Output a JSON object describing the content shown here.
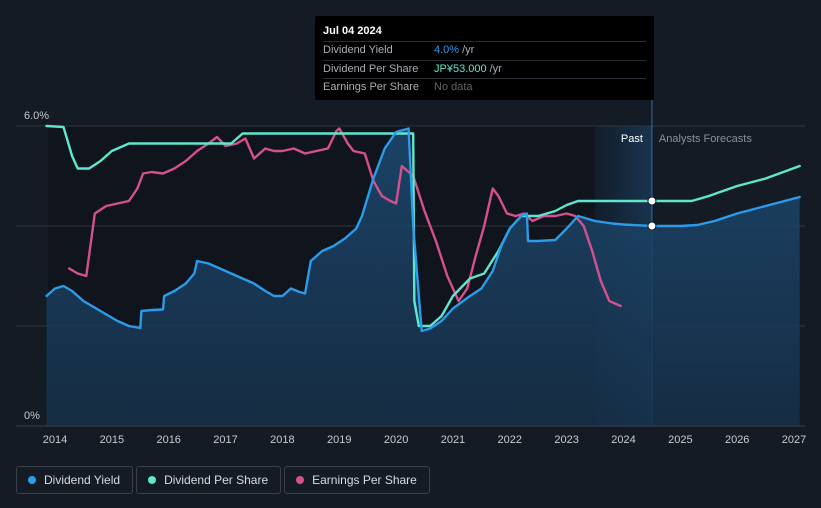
{
  "colors": {
    "background": "#151b24",
    "dividend_yield": "#2b9bea",
    "dividend_per_share": "#5fe7cd",
    "earnings_per_share": "#d4508f",
    "grid": "#2e3440",
    "axis_text": "#c7cbd1"
  },
  "tooltip": {
    "date": "Jul 04 2024",
    "rows": [
      {
        "label": "Dividend Yield",
        "value": "4.0%",
        "unit": "/yr"
      },
      {
        "label": "Dividend Per Share",
        "value": "JP¥53.000",
        "unit": "/yr"
      },
      {
        "label": "Earnings Per Share",
        "value": "No data",
        "unit": ""
      }
    ]
  },
  "legend": [
    {
      "label": "Dividend Yield",
      "color_key": "dividend_yield"
    },
    {
      "label": "Dividend Per Share",
      "color_key": "dividend_per_share"
    },
    {
      "label": "Earnings Per Share",
      "color_key": "earnings_per_share"
    }
  ],
  "chart_data": {
    "type": "line",
    "title": "",
    "xlabel": "",
    "ylabel": "",
    "xlim": [
      2013.8,
      2027.1
    ],
    "ylim": [
      0,
      6.0
    ],
    "y_tick_labels": [
      {
        "value": 6.0,
        "label": "6.0%"
      },
      {
        "value": 0,
        "label": "0%"
      }
    ],
    "x_tick_labels": [
      "2014",
      "2015",
      "2016",
      "2017",
      "2018",
      "2019",
      "2020",
      "2021",
      "2022",
      "2023",
      "2024",
      "2025",
      "2026",
      "2027"
    ],
    "past_label": "Past",
    "forecast_label": "Analysts Forecasts",
    "forecast_start": 2024.5,
    "past_band_start": 2023.5,
    "series": [
      {
        "name": "Dividend Yield",
        "unit": "%",
        "points": [
          [
            2013.85,
            2.6
          ],
          [
            2014.0,
            2.75
          ],
          [
            2014.15,
            2.8
          ],
          [
            2014.3,
            2.7
          ],
          [
            2014.5,
            2.5
          ],
          [
            2014.8,
            2.3
          ],
          [
            2015.1,
            2.1
          ],
          [
            2015.3,
            2.0
          ],
          [
            2015.5,
            1.96
          ],
          [
            2015.52,
            2.3
          ],
          [
            2015.7,
            2.32
          ],
          [
            2015.9,
            2.33
          ],
          [
            2015.92,
            2.6
          ],
          [
            2016.1,
            2.7
          ],
          [
            2016.3,
            2.85
          ],
          [
            2016.45,
            3.05
          ],
          [
            2016.5,
            3.3
          ],
          [
            2016.7,
            3.25
          ],
          [
            2016.9,
            3.15
          ],
          [
            2017.1,
            3.05
          ],
          [
            2017.3,
            2.95
          ],
          [
            2017.5,
            2.85
          ],
          [
            2017.7,
            2.7
          ],
          [
            2017.85,
            2.6
          ],
          [
            2018.0,
            2.6
          ],
          [
            2018.15,
            2.75
          ],
          [
            2018.3,
            2.68
          ],
          [
            2018.4,
            2.65
          ],
          [
            2018.5,
            3.3
          ],
          [
            2018.7,
            3.5
          ],
          [
            2018.9,
            3.6
          ],
          [
            2019.1,
            3.75
          ],
          [
            2019.3,
            3.95
          ],
          [
            2019.4,
            4.2
          ],
          [
            2019.6,
            4.95
          ],
          [
            2019.8,
            5.55
          ],
          [
            2020.0,
            5.88
          ],
          [
            2020.22,
            5.95
          ],
          [
            2020.3,
            4.0
          ],
          [
            2020.45,
            1.9
          ],
          [
            2020.6,
            1.95
          ],
          [
            2020.8,
            2.1
          ],
          [
            2021.0,
            2.35
          ],
          [
            2021.3,
            2.6
          ],
          [
            2021.5,
            2.75
          ],
          [
            2021.7,
            3.1
          ],
          [
            2021.85,
            3.6
          ],
          [
            2022.0,
            3.95
          ],
          [
            2022.2,
            4.2
          ],
          [
            2022.3,
            4.25
          ],
          [
            2022.32,
            3.7
          ],
          [
            2022.5,
            3.7
          ],
          [
            2022.8,
            3.72
          ],
          [
            2023.0,
            3.95
          ],
          [
            2023.2,
            4.2
          ],
          [
            2023.5,
            4.1
          ],
          [
            2023.8,
            4.05
          ],
          [
            2024.0,
            4.03
          ],
          [
            2024.5,
            4.0
          ],
          [
            2025.0,
            4.0
          ],
          [
            2025.3,
            4.02
          ],
          [
            2025.6,
            4.1
          ],
          [
            2026.0,
            4.25
          ],
          [
            2026.5,
            4.4
          ],
          [
            2027.1,
            4.58
          ]
        ]
      },
      {
        "name": "Dividend Per Share",
        "unit": "JP¥",
        "points": [
          [
            2013.85,
            6.0
          ],
          [
            2014.15,
            5.98
          ],
          [
            2014.3,
            5.4
          ],
          [
            2014.4,
            5.15
          ],
          [
            2014.6,
            5.15
          ],
          [
            2014.8,
            5.3
          ],
          [
            2015.0,
            5.5
          ],
          [
            2015.3,
            5.65
          ],
          [
            2015.5,
            5.65
          ],
          [
            2016.5,
            5.65
          ],
          [
            2016.8,
            5.65
          ],
          [
            2017.1,
            5.65
          ],
          [
            2017.3,
            5.85
          ],
          [
            2018.0,
            5.85
          ],
          [
            2019.0,
            5.85
          ],
          [
            2020.3,
            5.85
          ],
          [
            2020.32,
            2.5
          ],
          [
            2020.4,
            2.0
          ],
          [
            2020.6,
            2.0
          ],
          [
            2020.8,
            2.2
          ],
          [
            2021.0,
            2.6
          ],
          [
            2021.3,
            2.95
          ],
          [
            2021.55,
            3.05
          ],
          [
            2021.8,
            3.5
          ],
          [
            2022.0,
            3.95
          ],
          [
            2022.2,
            4.2
          ],
          [
            2022.5,
            4.2
          ],
          [
            2022.8,
            4.3
          ],
          [
            2023.0,
            4.42
          ],
          [
            2023.2,
            4.5
          ],
          [
            2023.5,
            4.5
          ],
          [
            2024.0,
            4.5
          ],
          [
            2024.5,
            4.5
          ],
          [
            2025.0,
            4.5
          ],
          [
            2025.2,
            4.5
          ],
          [
            2025.5,
            4.6
          ],
          [
            2026.0,
            4.8
          ],
          [
            2026.5,
            4.95
          ],
          [
            2027.1,
            5.2
          ]
        ]
      },
      {
        "name": "Earnings Per Share",
        "unit": "JP¥",
        "points": [
          [
            2014.25,
            3.15
          ],
          [
            2014.4,
            3.05
          ],
          [
            2014.55,
            3.0
          ],
          [
            2014.7,
            4.25
          ],
          [
            2014.9,
            4.4
          ],
          [
            2015.1,
            4.45
          ],
          [
            2015.3,
            4.5
          ],
          [
            2015.45,
            4.75
          ],
          [
            2015.55,
            5.05
          ],
          [
            2015.7,
            5.08
          ],
          [
            2015.9,
            5.05
          ],
          [
            2016.1,
            5.15
          ],
          [
            2016.3,
            5.3
          ],
          [
            2016.5,
            5.5
          ],
          [
            2016.7,
            5.65
          ],
          [
            2016.85,
            5.78
          ],
          [
            2017.0,
            5.6
          ],
          [
            2017.2,
            5.65
          ],
          [
            2017.35,
            5.75
          ],
          [
            2017.5,
            5.35
          ],
          [
            2017.7,
            5.55
          ],
          [
            2017.85,
            5.5
          ],
          [
            2018.0,
            5.5
          ],
          [
            2018.2,
            5.55
          ],
          [
            2018.4,
            5.45
          ],
          [
            2018.6,
            5.5
          ],
          [
            2018.8,
            5.55
          ],
          [
            2018.95,
            5.9
          ],
          [
            2019.0,
            5.95
          ],
          [
            2019.15,
            5.65
          ],
          [
            2019.25,
            5.5
          ],
          [
            2019.45,
            5.45
          ],
          [
            2019.6,
            4.9
          ],
          [
            2019.75,
            4.6
          ],
          [
            2019.9,
            4.5
          ],
          [
            2020.0,
            4.45
          ],
          [
            2020.1,
            5.2
          ],
          [
            2020.3,
            5.0
          ],
          [
            2020.5,
            4.3
          ],
          [
            2020.7,
            3.7
          ],
          [
            2020.9,
            3.0
          ],
          [
            2021.1,
            2.5
          ],
          [
            2021.25,
            2.75
          ],
          [
            2021.4,
            3.4
          ],
          [
            2021.55,
            4.0
          ],
          [
            2021.7,
            4.75
          ],
          [
            2021.8,
            4.6
          ],
          [
            2021.95,
            4.25
          ],
          [
            2022.1,
            4.2
          ],
          [
            2022.25,
            4.25
          ],
          [
            2022.4,
            4.1
          ],
          [
            2022.6,
            4.2
          ],
          [
            2022.8,
            4.2
          ],
          [
            2023.0,
            4.25
          ],
          [
            2023.15,
            4.2
          ],
          [
            2023.3,
            4.0
          ],
          [
            2023.45,
            3.5
          ],
          [
            2023.6,
            2.9
          ],
          [
            2023.75,
            2.5
          ],
          [
            2023.95,
            2.4
          ]
        ]
      }
    ],
    "markers": [
      {
        "series": "Dividend Per Share",
        "x": 2024.5,
        "y": 4.5
      },
      {
        "series": "Dividend Yield",
        "x": 2024.5,
        "y": 4.0
      }
    ]
  }
}
